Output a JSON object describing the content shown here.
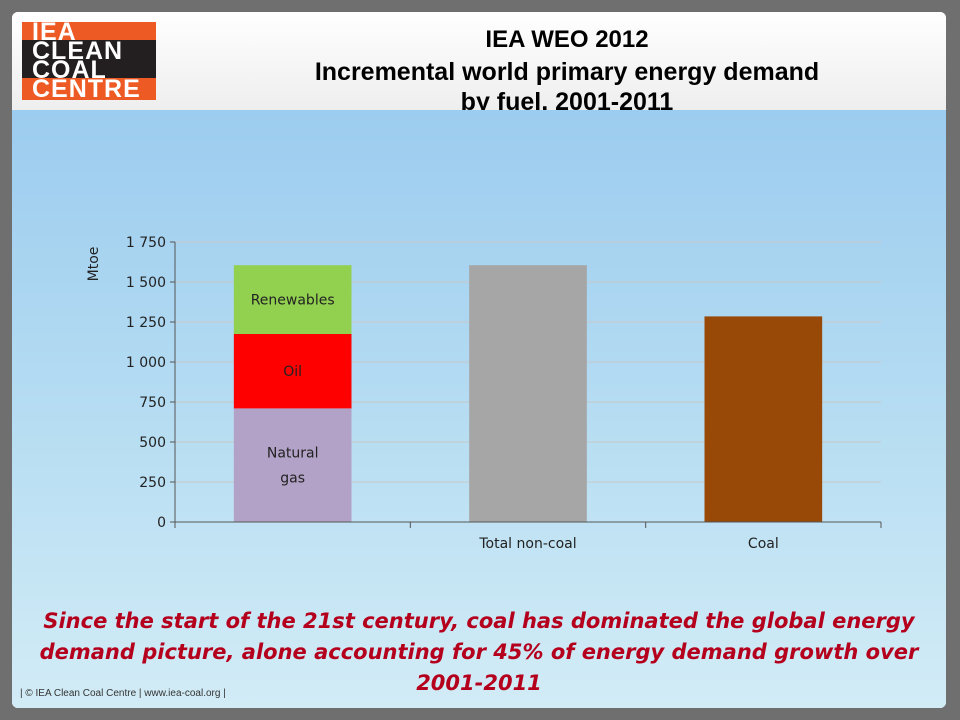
{
  "header": {
    "logo_lines": [
      "IEA",
      "CLEAN",
      "COAL",
      "CENTRE"
    ],
    "title_lines": [
      "IEA WEO 2012",
      "Incremental world primary energy demand",
      "by fuel, 2001-2011"
    ]
  },
  "chart_data": {
    "type": "bar",
    "stacked": true,
    "ylabel": "Mtoe",
    "ylim": [
      0,
      1750
    ],
    "yticks": [
      0,
      250,
      500,
      750,
      1000,
      1250,
      1500,
      1750
    ],
    "ytick_labels": [
      "0",
      "250",
      "500",
      "750",
      "1 000",
      "1 250",
      "1 500",
      "1 750"
    ],
    "grid": true,
    "categories": [
      "",
      "Total non-coal",
      "Coal"
    ],
    "bars": [
      {
        "category": "",
        "segments": [
          {
            "label_lines": [
              "Natural",
              "gas"
            ],
            "value": 710,
            "color": "#b3a2c7"
          },
          {
            "label_lines": [
              "Oil"
            ],
            "value": 465,
            "color": "#ff0000"
          },
          {
            "label_lines": [
              "Renewables"
            ],
            "value": 430,
            "color": "#92d050"
          }
        ]
      },
      {
        "category": "Total non-coal",
        "segments": [
          {
            "label_lines": [],
            "value": 1605,
            "color": "#a6a6a6"
          }
        ]
      },
      {
        "category": "Coal",
        "segments": [
          {
            "label_lines": [],
            "value": 1285,
            "color": "#984807"
          }
        ]
      }
    ]
  },
  "caption": "Since the start of the 21st century, coal has dominated the global energy demand picture, alone accounting for 45% of energy demand growth over 2001-2011",
  "footer": "| © IEA Clean Coal Centre  |  www.iea-coal.org  |"
}
